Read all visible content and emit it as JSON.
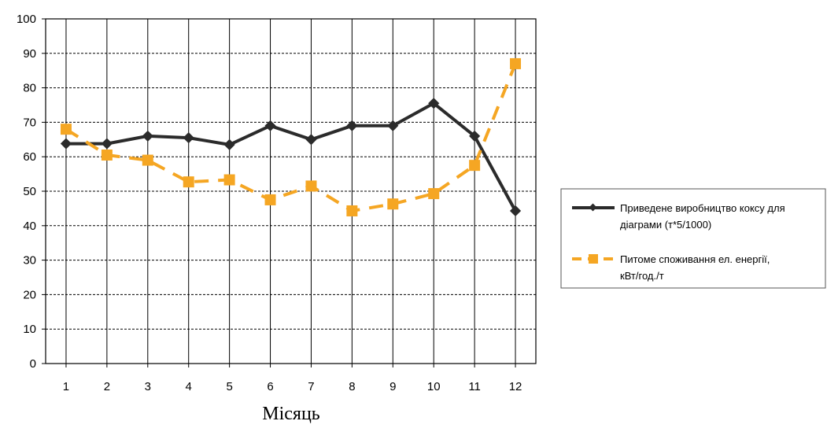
{
  "chart_data": {
    "type": "line",
    "title": "",
    "xlabel": "Місяць",
    "ylabel": "",
    "categories": [
      "1",
      "2",
      "3",
      "4",
      "5",
      "6",
      "7",
      "8",
      "9",
      "10",
      "11",
      "12"
    ],
    "ylim": [
      0,
      100
    ],
    "yticks": [
      "0",
      "10",
      "20",
      "30",
      "40",
      "50",
      "60",
      "70",
      "80",
      "90",
      "100"
    ],
    "grid": "horizontal dashed + vertical solid",
    "legend_position": "right",
    "series": [
      {
        "name": "Приведене виробництво коксу для діаграми (т*5/1000)",
        "legend_lines": [
          "Приведене виробництво коксу для",
          "діаграми (т*5/1000)"
        ],
        "color": "#2b2b2b",
        "style": "solid",
        "marker": "diamond",
        "values": [
          63.8,
          63.8,
          66,
          65.5,
          63.5,
          69,
          65,
          69,
          69,
          75.5,
          66,
          44.3
        ]
      },
      {
        "name": "Питоме споживання ел. енергії, кВт/год./т",
        "legend_lines": [
          "Питоме споживання ел. енергії,",
          "кВт/год./т"
        ],
        "color": "#f5a623",
        "style": "dashed",
        "marker": "square",
        "values": [
          68,
          60.5,
          59,
          52.7,
          53.3,
          47.5,
          51.5,
          44.3,
          46.3,
          49.3,
          57.5,
          87
        ]
      }
    ]
  }
}
